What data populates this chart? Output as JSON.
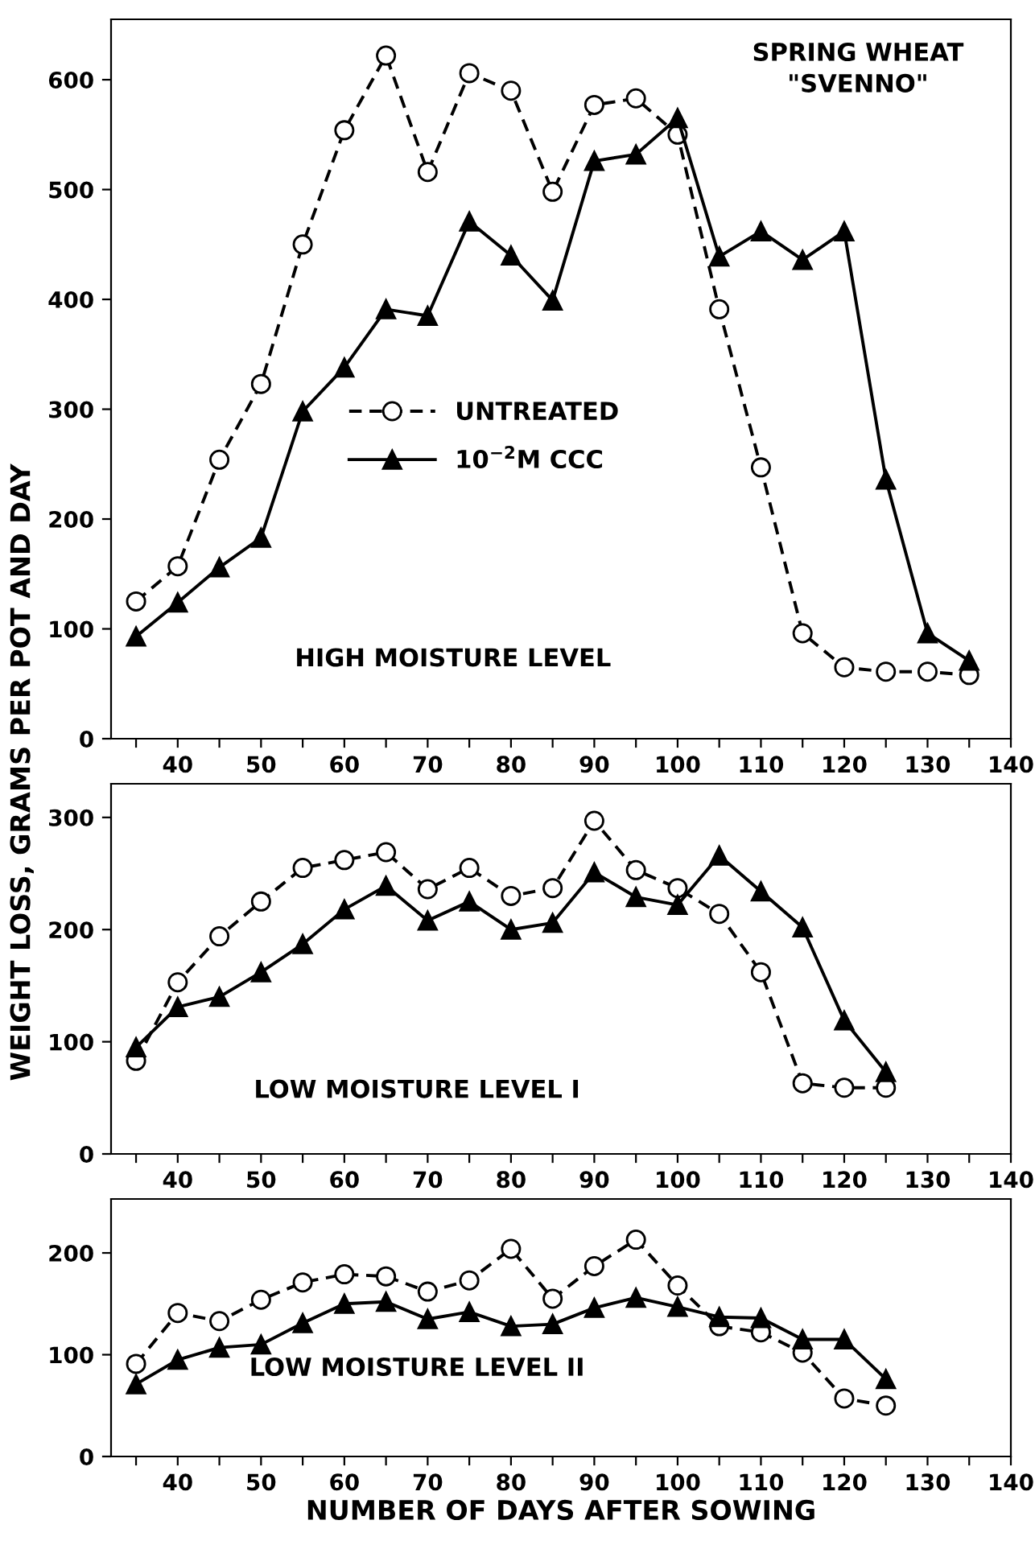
{
  "chart_data": [
    {
      "type": "line",
      "ylabel": "WEIGHT LOSS, GRAMS PER POT AND DAY",
      "x": [
        35,
        40,
        45,
        50,
        55,
        60,
        65,
        70,
        75,
        80,
        85,
        90,
        95,
        100,
        105,
        110,
        115,
        120,
        125,
        130,
        135
      ],
      "series": [
        {
          "name": "UNTREATED",
          "color": "#000000",
          "marker": "circle",
          "line_style": "dashed",
          "values": [
            125,
            157,
            254,
            323,
            450,
            554,
            622,
            516,
            606,
            590,
            498,
            577,
            583,
            550,
            391,
            247,
            96,
            65,
            61,
            61,
            58
          ]
        },
        {
          "name": "10$^{−2}$M CCC",
          "color": "#000000",
          "marker": "triangle",
          "line_style": "solid",
          "values": [
            93,
            124,
            156,
            183,
            298,
            338,
            391,
            385,
            471,
            440,
            399,
            526,
            532,
            565,
            439,
            462,
            436,
            462,
            236,
            96,
            71
          ]
        }
      ],
      "legend": "center left",
      "xlim": [
        32,
        140
      ],
      "ylim": [
        0,
        655
      ],
      "xticks": [
        {
          "value": 35,
          "label": null
        },
        40,
        {
          "value": 45,
          "label": null
        },
        50,
        {
          "value": 55,
          "label": null
        },
        60,
        {
          "value": 65,
          "label": null
        },
        70,
        {
          "value": 75,
          "label": null
        },
        80,
        {
          "value": 85,
          "label": null
        },
        90,
        {
          "value": 95,
          "label": null
        },
        100,
        {
          "value": 105,
          "label": null
        },
        110,
        {
          "value": 115,
          "label": null
        },
        120,
        {
          "value": 125,
          "label": null
        },
        130,
        {
          "value": 135,
          "label": null
        },
        140
      ],
      "yticks": [
        0,
        100,
        200,
        300,
        400,
        500,
        600
      ],
      "annotations": [
        "SPRING WHEAT\n\"SVENNO\"",
        "HIGH MOISTURE LEVEL"
      ]
    },
    {
      "type": "line",
      "x": [
        35,
        40,
        45,
        50,
        55,
        60,
        65,
        70,
        75,
        80,
        85,
        90,
        95,
        100,
        105,
        110,
        115,
        120,
        125
      ],
      "series": [
        {
          "color": "#000000",
          "marker": "circle",
          "line_style": "dashed",
          "values": [
            83,
            153,
            194,
            225,
            255,
            262,
            269,
            236,
            255,
            230,
            237,
            297,
            253,
            237,
            214,
            162,
            63,
            59,
            59
          ]
        },
        {
          "color": "#000000",
          "marker": "triangle",
          "line_style": "solid",
          "values": [
            95,
            131,
            140,
            162,
            187,
            218,
            239,
            208,
            225,
            200,
            206,
            251,
            229,
            222,
            266,
            234,
            202,
            119,
            73
          ]
        }
      ],
      "xlim": [
        32,
        140
      ],
      "ylim": [
        0,
        330
      ],
      "xticks": [
        {
          "value": 35,
          "label": null
        },
        40,
        {
          "value": 45,
          "label": null
        },
        50,
        {
          "value": 55,
          "label": null
        },
        60,
        {
          "value": 65,
          "label": null
        },
        70,
        {
          "value": 75,
          "label": null
        },
        80,
        {
          "value": 85,
          "label": null
        },
        90,
        {
          "value": 95,
          "label": null
        },
        100,
        {
          "value": 105,
          "label": null
        },
        110,
        {
          "value": 115,
          "label": null
        },
        120,
        {
          "value": 125,
          "label": null
        },
        130,
        {
          "value": 135,
          "label": null
        },
        140
      ],
      "yticks": [
        0,
        100,
        200,
        300
      ],
      "annotations": [
        "LOW MOISTURE LEVEL I"
      ]
    },
    {
      "type": "line",
      "xlabel": "NUMBER OF DAYS AFTER SOWING",
      "x": [
        35,
        40,
        45,
        50,
        55,
        60,
        65,
        70,
        75,
        80,
        85,
        90,
        95,
        100,
        105,
        110,
        115,
        120,
        125
      ],
      "series": [
        {
          "color": "#000000",
          "marker": "circle",
          "line_style": "dashed",
          "values": [
            91,
            141,
            133,
            154,
            171,
            179,
            177,
            162,
            173,
            204,
            155,
            187,
            213,
            168,
            128,
            122,
            102,
            57,
            50
          ]
        },
        {
          "color": "#000000",
          "marker": "triangle",
          "line_style": "solid",
          "values": [
            71,
            95,
            107,
            110,
            131,
            150,
            152,
            135,
            142,
            128,
            130,
            146,
            156,
            147,
            137,
            136,
            115,
            115,
            76
          ]
        }
      ],
      "xlim": [
        32,
        140
      ],
      "ylim": [
        0,
        253
      ],
      "xticks": [
        {
          "value": 35,
          "label": null
        },
        40,
        {
          "value": 45,
          "label": null
        },
        50,
        {
          "value": 55,
          "label": null
        },
        60,
        {
          "value": 65,
          "label": null
        },
        70,
        {
          "value": 75,
          "label": null
        },
        80,
        {
          "value": 85,
          "label": null
        },
        90,
        {
          "value": 95,
          "label": null
        },
        100,
        {
          "value": 105,
          "label": null
        },
        110,
        {
          "value": 115,
          "label": null
        },
        120,
        {
          "value": 125,
          "label": null
        },
        130,
        {
          "value": 135,
          "label": null
        },
        140
      ],
      "yticks": [
        0,
        100,
        200
      ],
      "annotations": [
        "LOW MOISTURE LEVEL II"
      ]
    }
  ]
}
